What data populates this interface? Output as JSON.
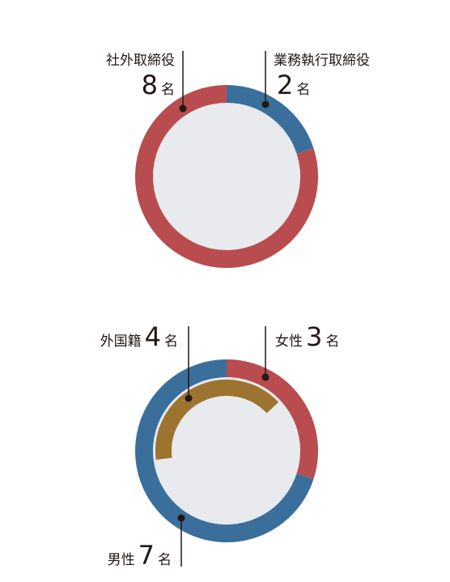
{
  "colors": {
    "red": "#b94c4e",
    "blue": "#3a6f9c",
    "gold": "#9c7430",
    "inner": "#e8eaed",
    "line": "#231815"
  },
  "chart_data": [
    {
      "type": "donut",
      "slices": [
        {
          "label": "業務執行取締役",
          "value": 2,
          "unit": "名",
          "color": "#3a6f9c"
        },
        {
          "label": "社外取締役",
          "value": 8,
          "unit": "名",
          "color": "#b94c4e"
        }
      ]
    },
    {
      "type": "donut",
      "slices": [
        {
          "label": "女性",
          "value": 3,
          "unit": "名",
          "color": "#b94c4e"
        },
        {
          "label": "男性",
          "value": 7,
          "unit": "名",
          "color": "#3a6f9c"
        }
      ],
      "inner_ring": {
        "label": "外国籍",
        "value": 4,
        "unit": "名",
        "total": 10,
        "color": "#9c7430"
      }
    }
  ]
}
